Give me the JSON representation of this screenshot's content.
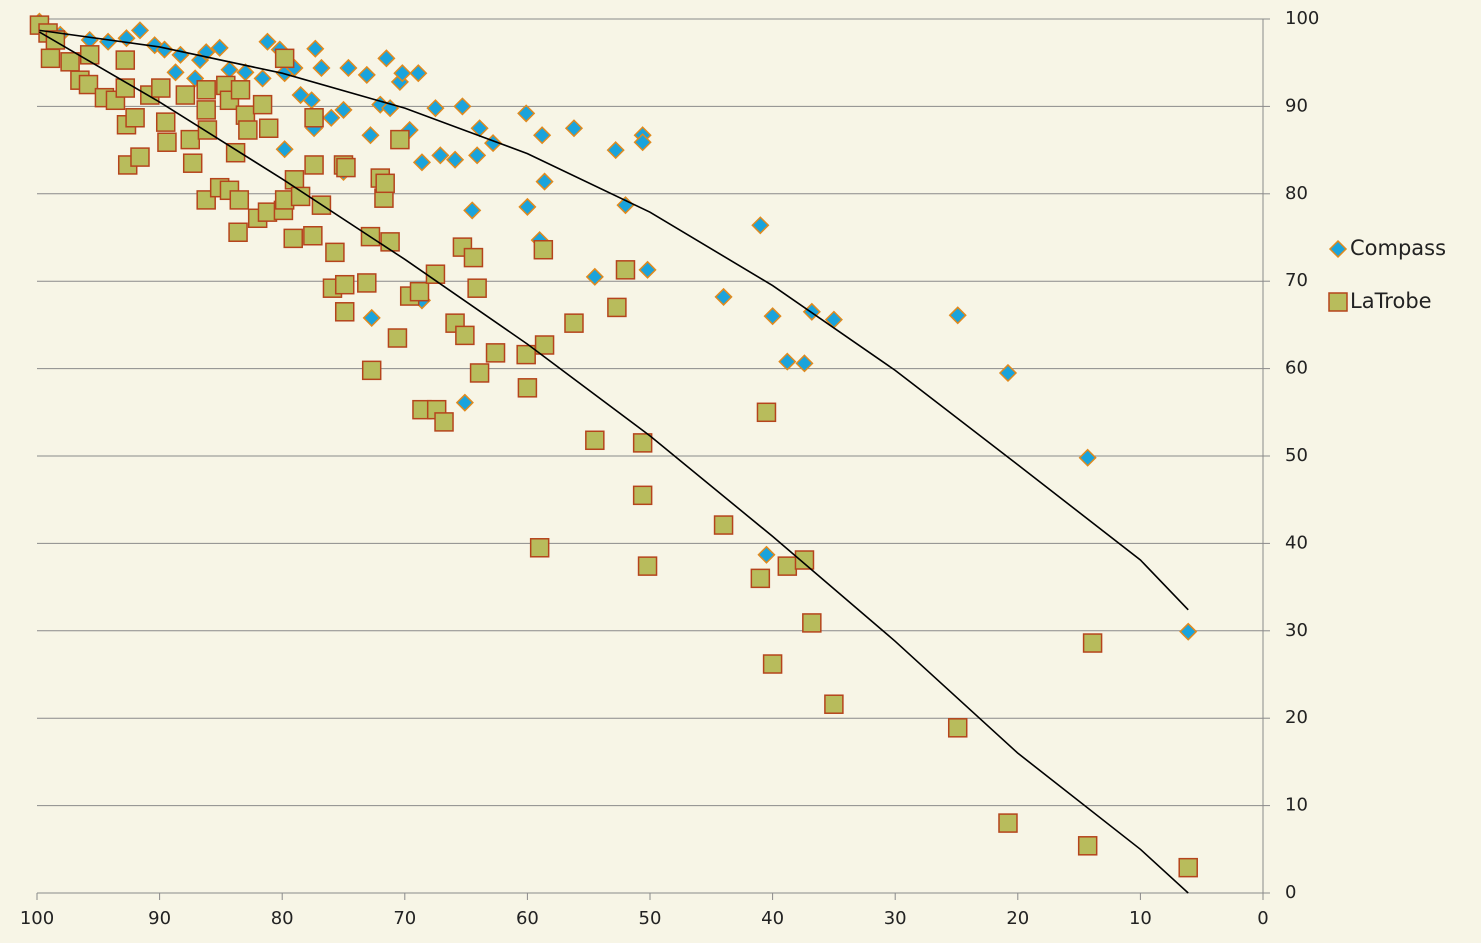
{
  "chart_data": {
    "type": "scatter",
    "xlim": [
      100,
      0
    ],
    "xticks": [
      100,
      90,
      80,
      70,
      60,
      50,
      40,
      30,
      20,
      10,
      0
    ],
    "ylim": [
      0,
      100
    ],
    "yticks": [
      0,
      10,
      20,
      30,
      40,
      50,
      60,
      70,
      80,
      90,
      100
    ],
    "grid": true,
    "legend": "right",
    "background": "#f7f5e6",
    "trendline_color": "#000000",
    "series": [
      {
        "name": "Compass",
        "marker": "diamond",
        "color": "#1aa3dc",
        "edge": "#e08a1e",
        "x": [
          99.8,
          98.1,
          95.7,
          94.2,
          91.6,
          92.7,
          90.4,
          89.6,
          88.3,
          86.7,
          85.1,
          86.2,
          88.7,
          87.1,
          84.3,
          83.0,
          81.2,
          80.2,
          79.8,
          79.0,
          81.6,
          77.3,
          76.8,
          74.6,
          73.1,
          71.5,
          70.4,
          70.2,
          68.9,
          78.5,
          77.6,
          76.0,
          75.0,
          77.4,
          72.0,
          71.2,
          72.8,
          69.6,
          79.8,
          67.5,
          65.3,
          63.9,
          62.8,
          67.1,
          65.9,
          68.6,
          64.1,
          60.1,
          58.8,
          58.6,
          56.2,
          64.5,
          60.0,
          59.0,
          52.8,
          52.0,
          50.6,
          50.6,
          50.2,
          54.5,
          41.0,
          44.0,
          40.0,
          36.8,
          35.0,
          38.8,
          37.4,
          24.9,
          20.8,
          14.3,
          6.1,
          40.5,
          65.1,
          72.7,
          68.6,
          75.0
        ],
        "y": [
          99.7,
          98.2,
          97.6,
          97.4,
          98.7,
          97.8,
          97.0,
          96.5,
          95.9,
          95.3,
          96.7,
          96.2,
          93.9,
          93.2,
          94.2,
          93.9,
          97.4,
          96.5,
          93.8,
          94.4,
          93.2,
          96.6,
          94.4,
          94.4,
          93.6,
          95.5,
          92.8,
          93.8,
          93.8,
          91.3,
          90.7,
          88.7,
          89.6,
          87.5,
          90.2,
          89.8,
          86.7,
          87.3,
          85.1,
          89.8,
          90.0,
          87.5,
          85.8,
          84.4,
          83.9,
          83.6,
          84.4,
          89.2,
          86.7,
          81.4,
          87.5,
          78.1,
          78.5,
          74.7,
          85.0,
          78.7,
          86.7,
          85.9,
          71.3,
          70.5,
          76.4,
          68.2,
          66.0,
          66.5,
          65.6,
          60.8,
          60.6,
          66.1,
          59.5,
          49.8,
          29.9,
          38.7,
          56.1,
          65.8,
          67.8,
          82.5
        ],
        "trendline": {
          "x": [
            99.8,
            90,
            80,
            70,
            60,
            50,
            40,
            30,
            20,
            10,
            6.1
          ],
          "y": [
            98.7,
            96.8,
            93.8,
            89.8,
            84.6,
            77.9,
            69.5,
            59.8,
            49.0,
            38.1,
            32.4
          ]
        }
      },
      {
        "name": "LaTrobe",
        "marker": "square",
        "color": "#b8bc5c",
        "edge": "#b5441c",
        "x": [
          99.8,
          99.1,
          98.5,
          98.9,
          97.3,
          96.5,
          95.7,
          95.8,
          94.5,
          93.6,
          92.8,
          92.8,
          92.7,
          92.0,
          92.6,
          91.6,
          90.8,
          89.9,
          89.5,
          89.4,
          87.9,
          87.5,
          87.3,
          86.2,
          86.2,
          86.1,
          86.2,
          84.6,
          84.3,
          83.8,
          83.4,
          83.0,
          82.8,
          85.1,
          84.3,
          83.5,
          83.6,
          81.6,
          81.1,
          82.0,
          81.2,
          79.9,
          79.8,
          79.8,
          79.0,
          78.5,
          79.1,
          77.4,
          77.4,
          77.5,
          76.8,
          75.7,
          75.9,
          75.0,
          74.8,
          74.9,
          74.9,
          73.1,
          72.8,
          72.7,
          72.0,
          71.7,
          71.6,
          71.2,
          70.4,
          70.6,
          69.6,
          68.8,
          68.6,
          67.5,
          67.4,
          66.8,
          65.9,
          65.3,
          65.1,
          64.4,
          64.1,
          63.9,
          62.6,
          60.1,
          60.0,
          59.0,
          58.7,
          58.6,
          56.2,
          54.5,
          52.7,
          52.0,
          50.6,
          50.6,
          50.2,
          44.0,
          41.0,
          40.5,
          40.0,
          38.8,
          37.4,
          36.8,
          35.0,
          24.9,
          20.8,
          14.3,
          13.9,
          6.1
        ],
        "y": [
          99.3,
          98.4,
          97.6,
          95.5,
          95.1,
          93.0,
          95.9,
          92.5,
          91.0,
          90.7,
          95.3,
          92.1,
          87.9,
          88.7,
          83.3,
          84.2,
          91.3,
          92.1,
          88.2,
          85.9,
          91.3,
          86.2,
          83.5,
          91.9,
          89.6,
          87.3,
          79.3,
          92.4,
          90.7,
          84.7,
          91.9,
          89.0,
          87.3,
          80.7,
          80.4,
          79.3,
          75.6,
          90.2,
          87.5,
          77.2,
          77.9,
          78.1,
          95.5,
          79.3,
          81.6,
          79.7,
          74.9,
          88.7,
          83.3,
          75.2,
          78.7,
          73.3,
          69.2,
          83.3,
          83.0,
          69.6,
          66.5,
          69.8,
          75.1,
          59.8,
          81.8,
          79.5,
          81.2,
          74.5,
          86.2,
          63.5,
          68.3,
          68.8,
          55.3,
          70.8,
          55.3,
          53.9,
          65.2,
          73.9,
          63.8,
          72.7,
          69.2,
          59.5,
          61.8,
          61.6,
          57.8,
          39.5,
          73.6,
          62.7,
          65.2,
          51.8,
          67.0,
          71.3,
          51.5,
          45.5,
          37.4,
          42.1,
          36.0,
          55.0,
          26.2,
          37.4,
          38.1,
          30.9,
          21.6,
          18.9,
          8.0,
          5.4,
          28.6,
          2.9
        ],
        "trendline": {
          "x": [
            99.8,
            90,
            80,
            70,
            60,
            50,
            40,
            30,
            20,
            10,
            6.1
          ],
          "y": [
            98.5,
            90.5,
            81.7,
            72.5,
            62.8,
            52.3,
            40.8,
            28.8,
            16.0,
            5.0,
            0
          ]
        }
      }
    ]
  }
}
